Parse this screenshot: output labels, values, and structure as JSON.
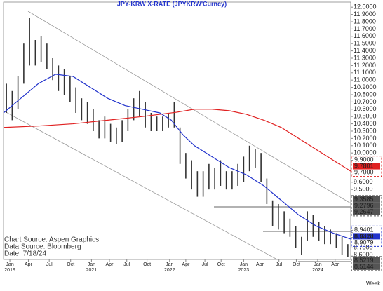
{
  "chart_data": {
    "type": "ohlc",
    "title": "JPY-KRW  X-RATE  (JPYKRW'Curncy)",
    "sources": [
      "Chart Source: Aspen Graphics",
      "Data Source: Bloomberg",
      "Date:    7/18/24"
    ],
    "period": "Week",
    "xlim": [
      0,
      60
    ],
    "ylim": [
      8.54,
      12.05
    ],
    "xticks": [
      {
        "value": 1.1,
        "label": "Jan",
        "year": "2019"
      },
      {
        "value": 4.3,
        "label": "Apr"
      },
      {
        "value": 7.9,
        "label": "Jul"
      },
      {
        "value": 11.6,
        "label": "Oct"
      },
      {
        "value": 15.2,
        "label": "Jan",
        "year": "2021"
      },
      {
        "value": 18.3,
        "label": "Apr"
      },
      {
        "value": 21.3,
        "label": "Jul"
      },
      {
        "value": 24.8,
        "label": "Oct"
      },
      {
        "value": 28.7,
        "label": "Jan",
        "year": "2022"
      },
      {
        "value": 31.5,
        "label": "Apr"
      },
      {
        "value": 34.8,
        "label": "Jul"
      },
      {
        "value": 37.6,
        "label": "Oct"
      },
      {
        "value": 41.5,
        "label": "Jan",
        "year": "2023"
      },
      {
        "value": 44.3,
        "label": "Apr"
      },
      {
        "value": 47.6,
        "label": "Jul"
      },
      {
        "value": 50.6,
        "label": "Oct"
      },
      {
        "value": 54.3,
        "label": "Jan",
        "year": "2024"
      },
      {
        "value": 57.3,
        "label": "Apr"
      }
    ],
    "yticks": [
      {
        "value": 12.0,
        "label": "12.0000"
      },
      {
        "value": 11.9,
        "label": "11.9000"
      },
      {
        "value": 11.8,
        "label": "11.8000"
      },
      {
        "value": 11.7,
        "label": "11.7000"
      },
      {
        "value": 11.6,
        "label": "11.6000"
      },
      {
        "value": 11.5,
        "label": "11.5000"
      },
      {
        "value": 11.4,
        "label": "11.4000"
      },
      {
        "value": 11.3,
        "label": "11.3000"
      },
      {
        "value": 11.2,
        "label": "11.2000"
      },
      {
        "value": 11.1,
        "label": "11.1000"
      },
      {
        "value": 11.0,
        "label": "11.0000"
      },
      {
        "value": 10.9,
        "label": "10.9000"
      },
      {
        "value": 10.8,
        "label": "10.8000"
      },
      {
        "value": 10.7,
        "label": "10.7000"
      },
      {
        "value": 10.6,
        "label": "10.6000"
      },
      {
        "value": 10.5,
        "label": "10.5000"
      },
      {
        "value": 10.4,
        "label": "10.4000"
      },
      {
        "value": 10.3,
        "label": "10.3000"
      },
      {
        "value": 10.2,
        "label": "10.2000"
      },
      {
        "value": 10.1,
        "label": "10.1000"
      },
      {
        "value": 10.0,
        "label": "10.0000"
      },
      {
        "value": 9.6,
        "label": "9.6000"
      },
      {
        "value": 9.5,
        "label": "9.5000"
      },
      {
        "value": 8.7,
        "label": "8.7000"
      },
      {
        "value": 8.6,
        "label": "8.6000"
      }
    ],
    "level_groups": [
      {
        "color": "#e02020",
        "levels": [
          {
            "value": 9.9,
            "label": "9.9000"
          },
          {
            "value": 9.7801,
            "label": "9.7801",
            "filled": true
          },
          {
            "value": 9.7,
            "label": "9.7000"
          }
        ]
      },
      {
        "color": "#555555",
        "levels": [
          {
            "value": 9.3585,
            "label": "9.3585",
            "filled": true
          },
          {
            "value": 9.2796,
            "label": "9.2796",
            "filled": true
          },
          {
            "value": 9.2647,
            "label": "9.2647",
            "filled": true
          }
        ]
      },
      {
        "color": "#2233cc",
        "levels": [
          {
            "value": 8.9401,
            "label": "8.9401"
          },
          {
            "value": 8.932,
            "label": "8.9320",
            "filled": true
          },
          {
            "value": 8.9079,
            "label": "8.9079"
          }
        ]
      },
      {
        "levels": [
          {
            "value": 8.8414,
            "label": "8.8414"
          }
        ]
      },
      {
        "color": "#555555",
        "levels": [
          {
            "value": 8.5219,
            "label": "8.5219",
            "filled": true
          },
          {
            "value": 8.5144,
            "label": "8.5144",
            "filled": true
          }
        ]
      }
    ],
    "bar_color": "#333333",
    "high": [
      10.95,
      10.85,
      11.05,
      11.5,
      11.85,
      11.55,
      11.6,
      11.5,
      11.3,
      11.2,
      11.15,
      11.05,
      10.9,
      10.75,
      10.7,
      10.6,
      10.45,
      10.5,
      10.4,
      10.35,
      10.45,
      10.6,
      10.75,
      10.85,
      10.7,
      10.55,
      10.5,
      10.5,
      10.55,
      10.7,
      10.35,
      10.0,
      9.9,
      9.75,
      9.75,
      9.85,
      9.8,
      9.9,
      9.75,
      9.75,
      9.85,
      9.95,
      10.1,
      10.05,
      10.0,
      9.65,
      9.35,
      9.3,
      9.2,
      9.1,
      9.0,
      8.85,
      9.2,
      9.15,
      9.05,
      9.0,
      8.95,
      8.9,
      8.85,
      8.75
    ],
    "low": [
      10.55,
      10.45,
      10.6,
      10.95,
      11.2,
      11.2,
      11.25,
      11.15,
      11.0,
      10.85,
      10.8,
      10.7,
      10.55,
      10.45,
      10.4,
      10.3,
      10.2,
      10.2,
      10.15,
      10.12,
      10.15,
      10.3,
      10.45,
      10.5,
      10.35,
      10.3,
      10.3,
      10.3,
      10.35,
      10.35,
      9.85,
      9.65,
      9.5,
      9.4,
      9.4,
      9.5,
      9.5,
      9.55,
      9.5,
      9.5,
      9.55,
      9.6,
      9.75,
      9.8,
      9.6,
      9.3,
      9.0,
      8.95,
      8.9,
      8.85,
      8.7,
      8.6,
      8.8,
      8.85,
      8.8,
      8.75,
      8.75,
      8.7,
      8.6,
      8.57
    ],
    "series": [
      {
        "color": "#2233cc",
        "x": [
          0,
          3,
          6,
          9,
          12,
          15,
          18,
          21,
          24,
          27,
          29,
          31,
          33,
          36,
          39,
          42,
          45,
          48,
          51,
          54,
          57,
          60
        ],
        "values": [
          10.55,
          10.75,
          10.95,
          11.08,
          11.05,
          10.9,
          10.75,
          10.65,
          10.6,
          10.55,
          10.45,
          10.25,
          10.1,
          9.95,
          9.8,
          9.7,
          9.55,
          9.35,
          9.15,
          9.0,
          8.9,
          8.82
        ]
      },
      {
        "color": "#e02020",
        "x": [
          0,
          6,
          12,
          18,
          24,
          30,
          33,
          36,
          39,
          42,
          45,
          48,
          51,
          54,
          57,
          60
        ],
        "values": [
          10.35,
          10.37,
          10.4,
          10.45,
          10.5,
          10.56,
          10.6,
          10.6,
          10.58,
          10.53,
          10.45,
          10.35,
          10.2,
          10.05,
          9.9,
          9.75
        ]
      }
    ]
  }
}
